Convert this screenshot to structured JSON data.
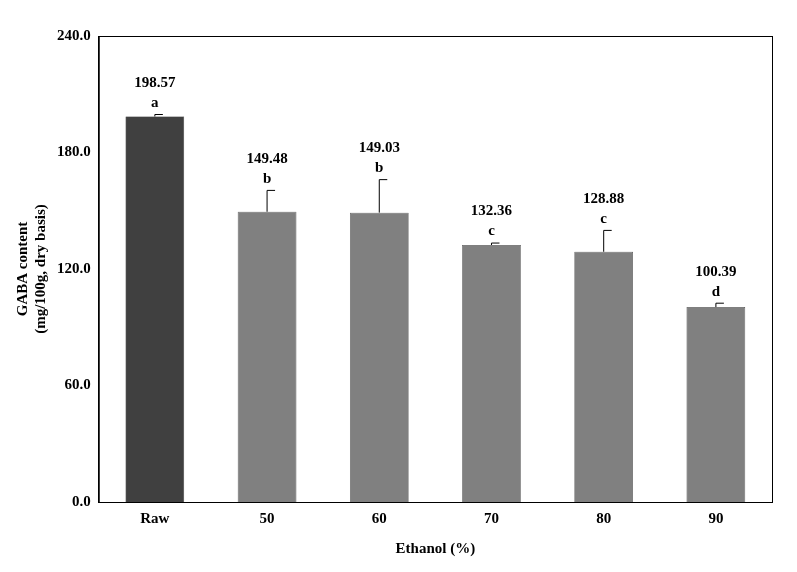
{
  "chart_data": {
    "type": "bar",
    "x_label": "Ethanol (%)",
    "y_label": [
      "GABA content",
      "(mg/100g, dry basis)"
    ],
    "categories": [
      "Raw",
      "50",
      "60",
      "70",
      "80",
      "90"
    ],
    "values": [
      198.57,
      149.48,
      149.03,
      132.36,
      128.88,
      100.39
    ],
    "errors": [
      1,
      11,
      17,
      1,
      11,
      2
    ],
    "letters": [
      "a",
      "b",
      "b",
      "c",
      "c",
      "d"
    ],
    "colors": [
      "#404040",
      "#808080",
      "#808080",
      "#808080",
      "#808080",
      "#808080"
    ],
    "ylim": [
      0,
      240
    ],
    "yticks": [
      {
        "value": 0,
        "label": "0.0"
      },
      {
        "value": 60,
        "label": "60.0"
      },
      {
        "value": 120,
        "label": "120.0"
      },
      {
        "value": 180,
        "label": "180.0"
      },
      {
        "value": 240,
        "label": "240.0"
      }
    ],
    "grid": false,
    "data_labels": true
  }
}
